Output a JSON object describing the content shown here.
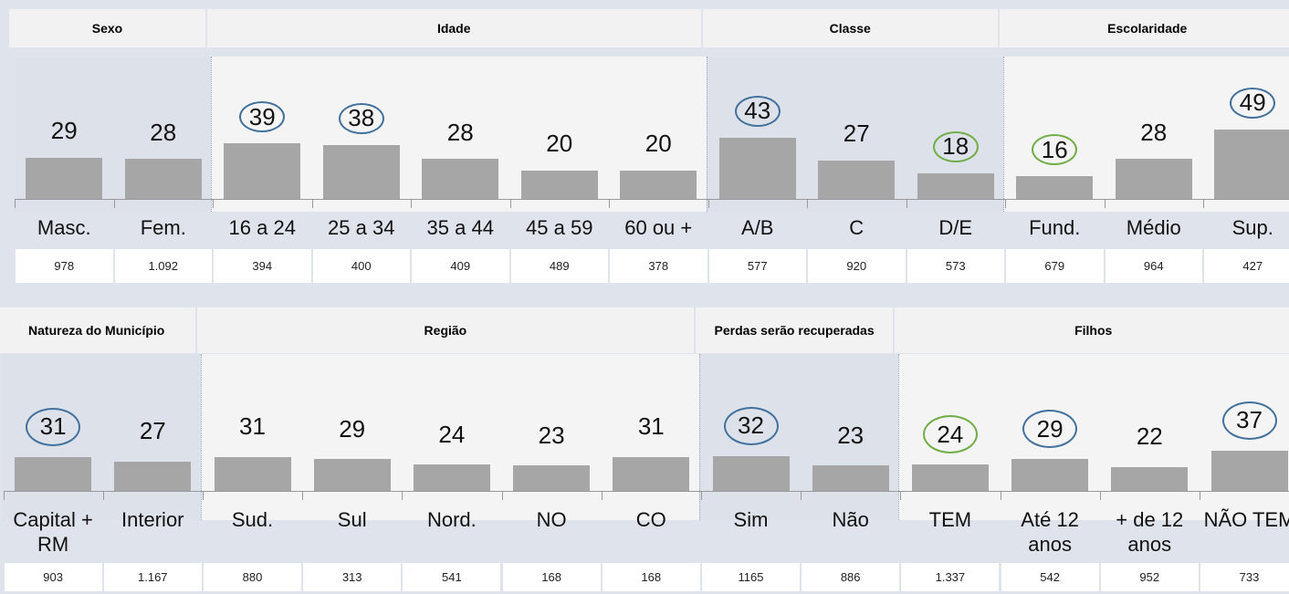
{
  "chart_data": [
    {
      "type": "bar",
      "ylim": [
        0,
        100
      ],
      "color": "#a6a6a6",
      "groups": [
        {
          "name": "Sexo",
          "categories": [
            "Masc.",
            "Fem."
          ],
          "values": [
            29,
            28
          ],
          "sample_sizes": [
            "978",
            "1.092"
          ],
          "highlights": [
            null,
            null
          ]
        },
        {
          "name": "Idade",
          "categories": [
            "16 a 24",
            "25 a 34",
            "35 a 44",
            "45 a 59",
            "60 ou +"
          ],
          "values": [
            39,
            38,
            28,
            20,
            20
          ],
          "sample_sizes": [
            "394",
            "400",
            "409",
            "489",
            "378"
          ],
          "highlights": [
            "#41719c",
            "#41719c",
            null,
            null,
            null
          ]
        },
        {
          "name": "Classe",
          "categories": [
            "A/B",
            "C",
            "D/E"
          ],
          "values": [
            43,
            27,
            18
          ],
          "sample_sizes": [
            "577",
            "920",
            "573"
          ],
          "highlights": [
            "#41719c",
            null,
            "#70ad47"
          ]
        },
        {
          "name": "Escolaridade",
          "categories": [
            "Fund.",
            "Médio",
            "Sup."
          ],
          "values": [
            16,
            28,
            49
          ],
          "sample_sizes": [
            "679",
            "964",
            "427"
          ],
          "highlights": [
            "#70ad47",
            null,
            "#41719c"
          ]
        }
      ]
    },
    {
      "type": "bar",
      "ylim": [
        0,
        125
      ],
      "color": "#a6a6a6",
      "groups": [
        {
          "name": "Natureza do Município",
          "categories": [
            "Capital + RM",
            "Interior"
          ],
          "values": [
            31,
            27
          ],
          "sample_sizes": [
            "903",
            "1.167"
          ],
          "highlights": [
            "#41719c",
            null
          ]
        },
        {
          "name": "Região",
          "categories": [
            "Sud.",
            "Sul",
            "Nord.",
            "NO",
            "CO"
          ],
          "values": [
            31,
            29,
            24,
            23,
            31
          ],
          "sample_sizes": [
            "880",
            "313",
            "541",
            "168",
            "168"
          ],
          "highlights": [
            null,
            null,
            null,
            null,
            null
          ]
        },
        {
          "name": "Perdas serão recuperadas",
          "categories": [
            "Sim",
            "Não"
          ],
          "values": [
            32,
            23
          ],
          "sample_sizes": [
            "1165",
            "886"
          ],
          "highlights": [
            "#41719c",
            null
          ]
        },
        {
          "name": "Filhos",
          "categories": [
            "TEM",
            "Até 12 anos",
            "+ de 12 anos",
            "NÃO TEM"
          ],
          "values": [
            24,
            29,
            22,
            37
          ],
          "sample_sizes": [
            "1.337",
            "542",
            "952",
            "733"
          ],
          "highlights": [
            "#70ad47",
            "#41719c",
            null,
            "#41719c"
          ]
        }
      ]
    }
  ]
}
